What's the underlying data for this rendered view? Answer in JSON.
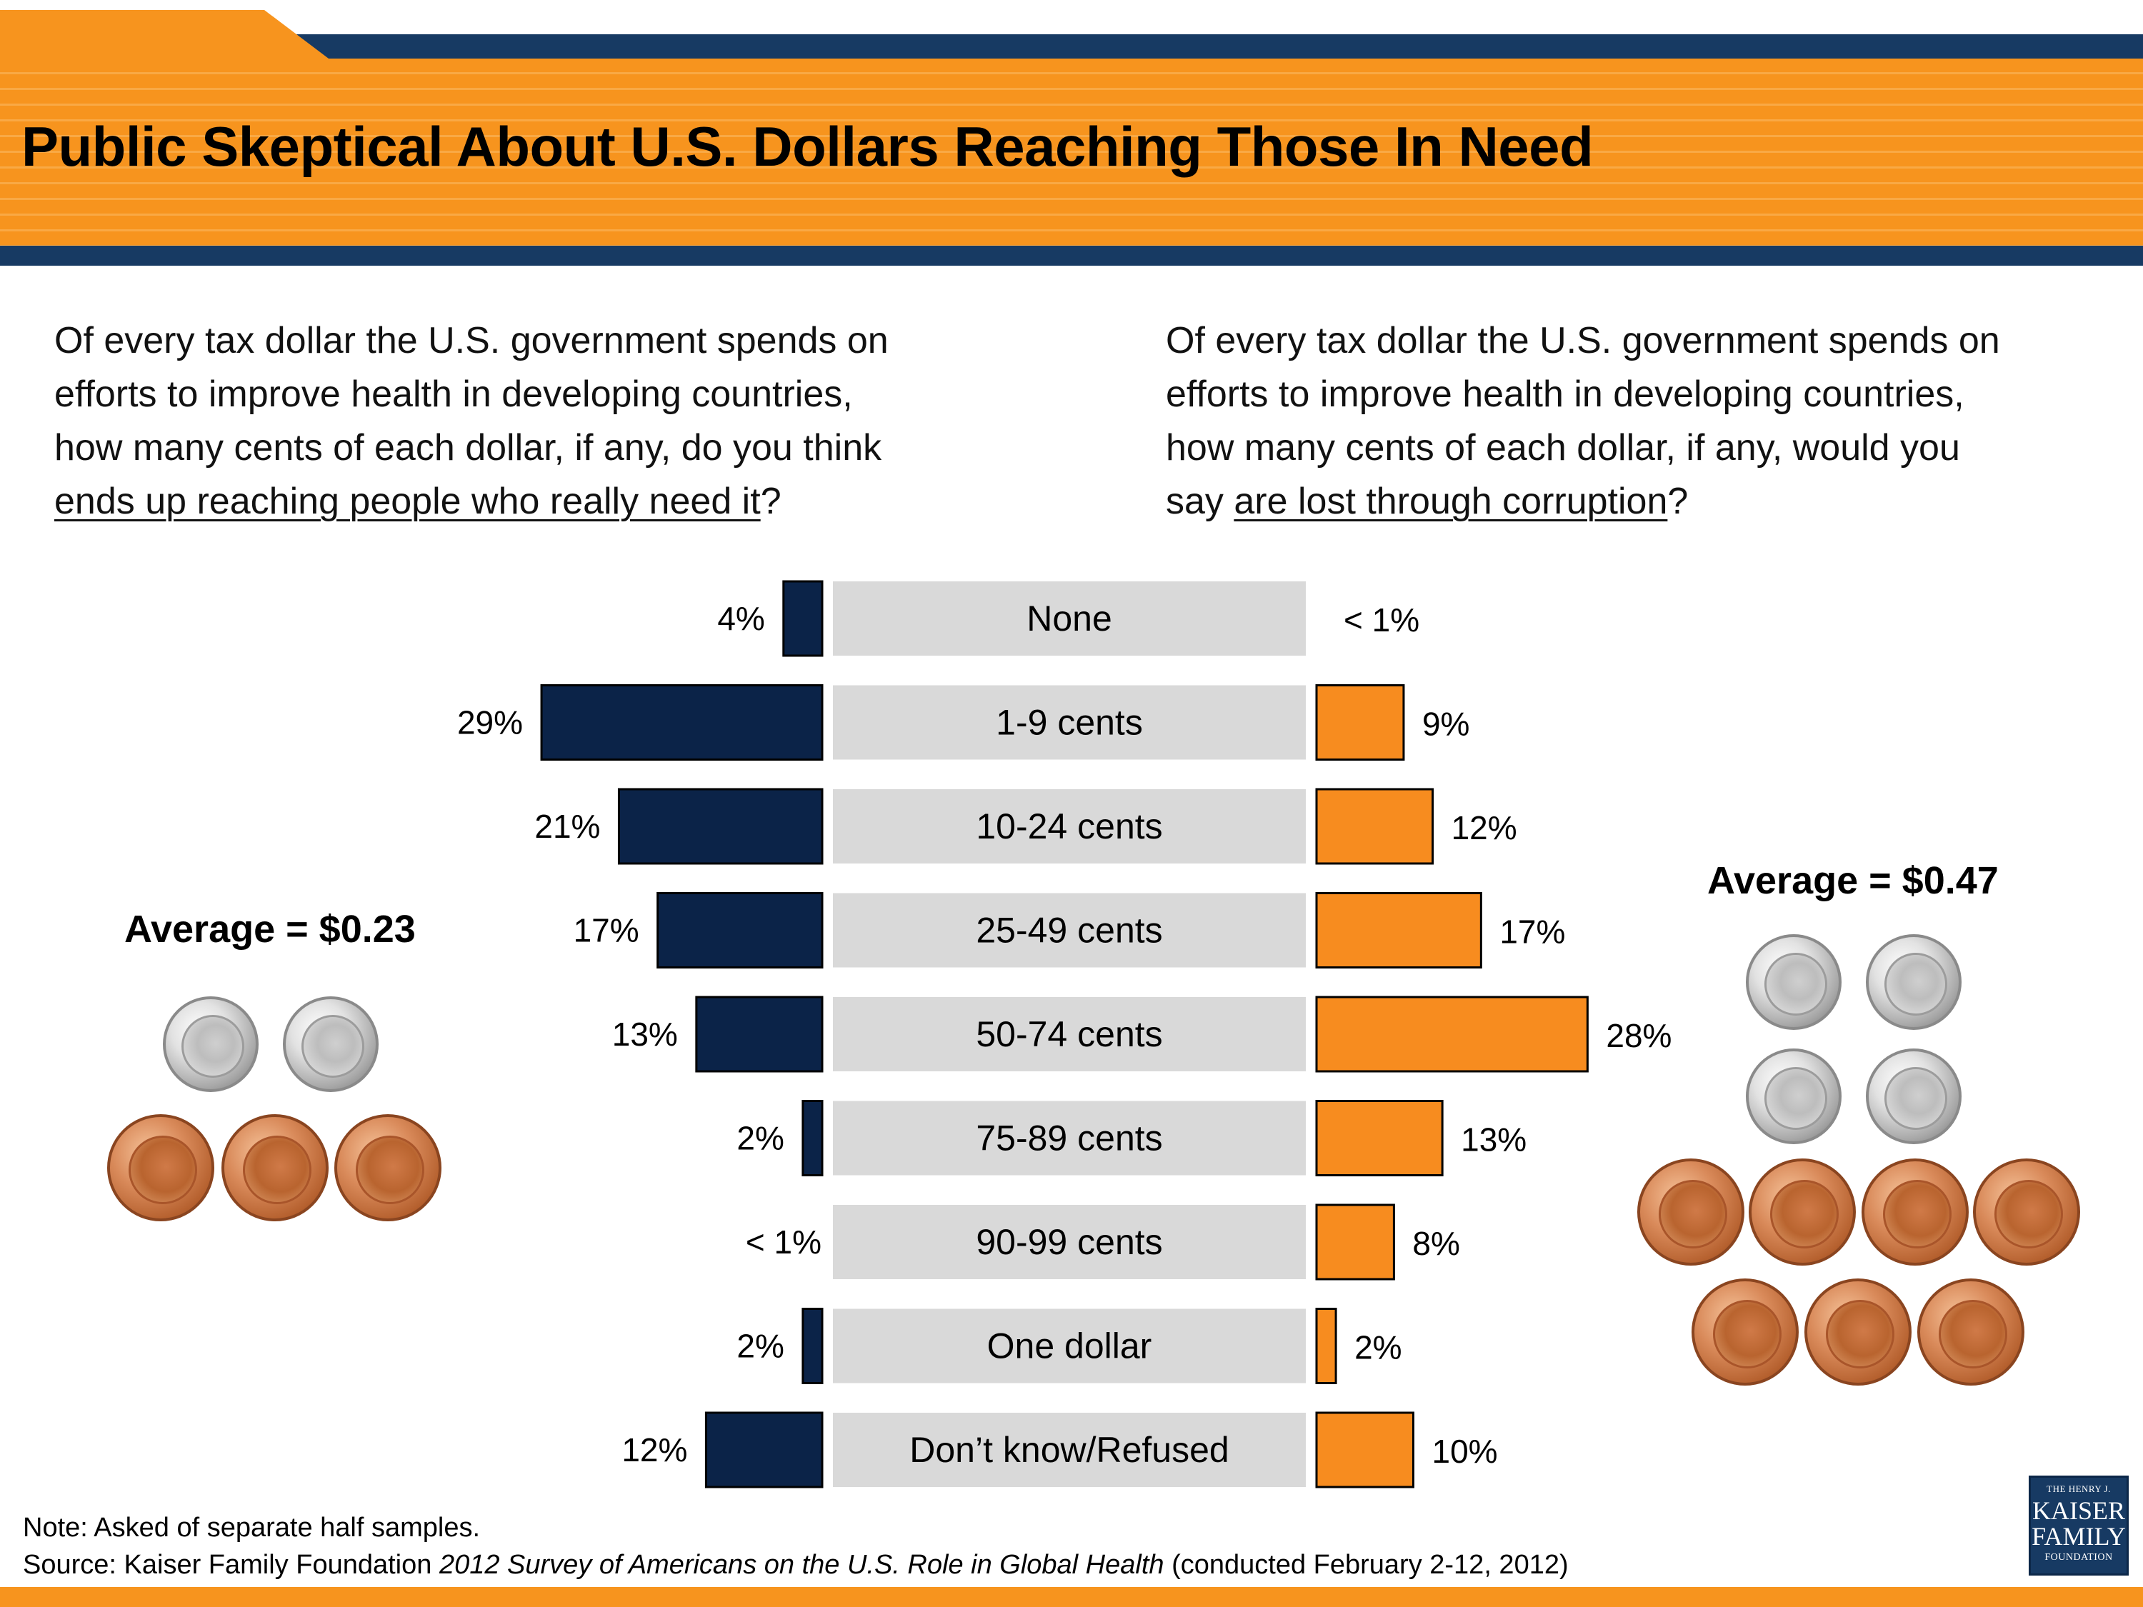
{
  "header": {
    "title": "Public Skeptical About U.S. Dollars Reaching Those In Need"
  },
  "questions": {
    "left": {
      "lines": [
        "Of every tax dollar the U.S. government spends on",
        "efforts to improve health in developing countries,",
        "how many cents of each dollar, if any, do you think"
      ],
      "underlined": "ends up reaching people who really need it",
      "suffix": "?"
    },
    "right": {
      "lines": [
        "Of every tax dollar the U.S. government spends on",
        "efforts to improve health in developing countries,",
        "how many cents of each dollar, if any, would you"
      ],
      "prefix": "say ",
      "underlined": "are lost through corruption",
      "suffix": "?"
    }
  },
  "chart_data": {
    "type": "bar",
    "orientation": "horizontal-diverging",
    "categories": [
      "None",
      "1-9 cents",
      "10-24 cents",
      "25-49 cents",
      "50-74 cents",
      "75-89 cents",
      "90-99 cents",
      "One dollar",
      "Don’t know/Refused"
    ],
    "series": [
      {
        "color": "#0b2348",
        "values": [
          4,
          29,
          21,
          17,
          13,
          2,
          0.4,
          2,
          12
        ],
        "labels": [
          "4%",
          "29%",
          "21%",
          "17%",
          "13%",
          "2%",
          "< 1%",
          "2%",
          "12%"
        ]
      },
      {
        "color": "#f78c1f",
        "values": [
          0.4,
          9,
          12,
          17,
          28,
          13,
          8,
          2,
          10
        ],
        "labels": [
          "< 1%",
          "9%",
          "12%",
          "17%",
          "28%",
          "13%",
          "8%",
          "2%",
          "10%"
        ]
      }
    ],
    "title": "",
    "xlabel": "",
    "ylabel": "",
    "grid": false
  },
  "averages": {
    "left": "Average = $0.23",
    "right": "Average = $0.47"
  },
  "coins": {
    "left": {
      "dimes": 2,
      "pennies": 3
    },
    "right": {
      "dimes": 4,
      "pennies": 7
    }
  },
  "footer": {
    "note": "Note: Asked of separate half samples.",
    "source_prefix": "Source: Kaiser Family Foundation ",
    "source_italic": "2012 Survey of Americans on the U.S. Role in Global Health",
    "source_suffix": " (conducted February 2-12, 2012)",
    "logo": {
      "line1": "THE HENRY J.",
      "line2": "KAISER",
      "line3": "FAMILY",
      "line4": "FOUNDATION"
    }
  },
  "colors": {
    "brand_navy": "#173a63",
    "brand_orange": "#f7941e"
  }
}
